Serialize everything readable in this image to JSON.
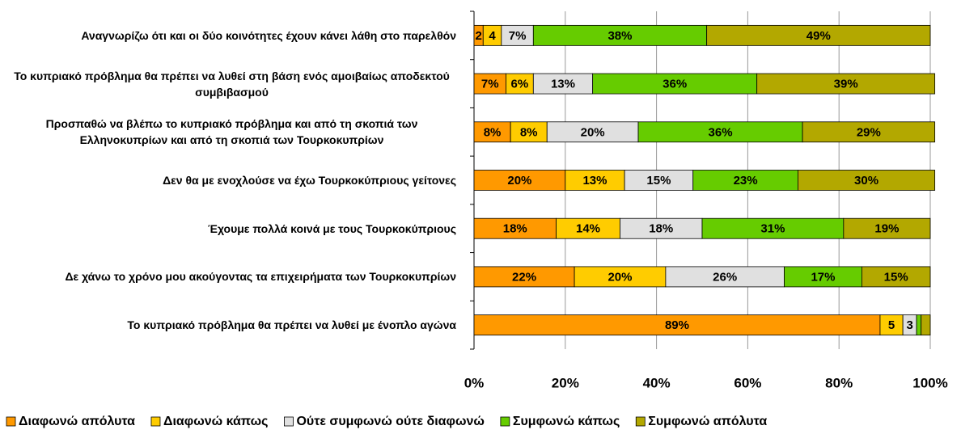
{
  "chart_data": {
    "type": "stacked-barh",
    "categories": [
      "Αναγνωρίζω ότι και οι δύο κοινότητες έχουν κάνει λάθη στο παρελθόν",
      "Το κυπριακό πρόβλημα θα πρέπει να λυθεί στη βάση ενός αμοιβαίως αποδεκτού συμβιβασμού",
      "Προσπαθώ να βλέπω το κυπριακό πρόβλημα και από τη σκοπιά των Ελληνοκυπρίων και από τη σκοπιά των Τουρκοκυπρίων",
      "Δεν θα με ενοχλούσε να έχω Τουρκοκύπριους γείτονες",
      "Έχουμε πολλά κοινά με τους Τουρκοκύπριους",
      "Δε χάνω το χρόνο μου ακούγοντας τα επιχειρήματα των Τουρκοκυπρίων",
      "Το κυπριακό πρόβλημα θα πρέπει να λυθεί με ένοπλο αγώνα"
    ],
    "series": [
      {
        "name": "Διαφωνώ απόλυτα",
        "color": "#ff9900",
        "values": [
          2,
          7,
          8,
          20,
          18,
          22,
          89
        ],
        "value_labels": [
          "2",
          "7%",
          "8%",
          "20%",
          "18%",
          "22%",
          "89%"
        ]
      },
      {
        "name": "Διαφωνώ κάπως",
        "color": "#ffcc00",
        "values": [
          4,
          6,
          8,
          13,
          14,
          20,
          5
        ],
        "value_labels": [
          "4",
          "6%",
          "8%",
          "13%",
          "14%",
          "20%",
          "5"
        ]
      },
      {
        "name": "Ούτε συμφωνώ ούτε διαφωνώ",
        "color": "#e0e0e0",
        "values": [
          7,
          13,
          20,
          15,
          18,
          26,
          3
        ],
        "value_labels": [
          "7%",
          "13%",
          "20%",
          "15%",
          "18%",
          "26%",
          "3"
        ]
      },
      {
        "name": "Συμφωνώ κάπως",
        "color": "#66cc00",
        "values": [
          38,
          36,
          36,
          23,
          31,
          17,
          1
        ],
        "value_labels": [
          "38%",
          "36%",
          "36%",
          "23%",
          "31%",
          "17%",
          null
        ]
      },
      {
        "name": "Συμφωνώ απόλυτα",
        "color": "#b3a800",
        "values": [
          49,
          39,
          29,
          30,
          19,
          15,
          2
        ],
        "value_labels": [
          "49%",
          "39%",
          "29%",
          "30%",
          "19%",
          "15%",
          null
        ]
      }
    ],
    "xlim": [
      0,
      100
    ],
    "xticks": [
      {
        "value": 0,
        "label": "0%"
      },
      {
        "value": 20,
        "label": "20%"
      },
      {
        "value": 40,
        "label": "40%"
      },
      {
        "value": 60,
        "label": "60%"
      },
      {
        "value": 80,
        "label": "80%"
      },
      {
        "value": 100,
        "label": "100%"
      }
    ],
    "grid": true,
    "legend": "bottom"
  }
}
